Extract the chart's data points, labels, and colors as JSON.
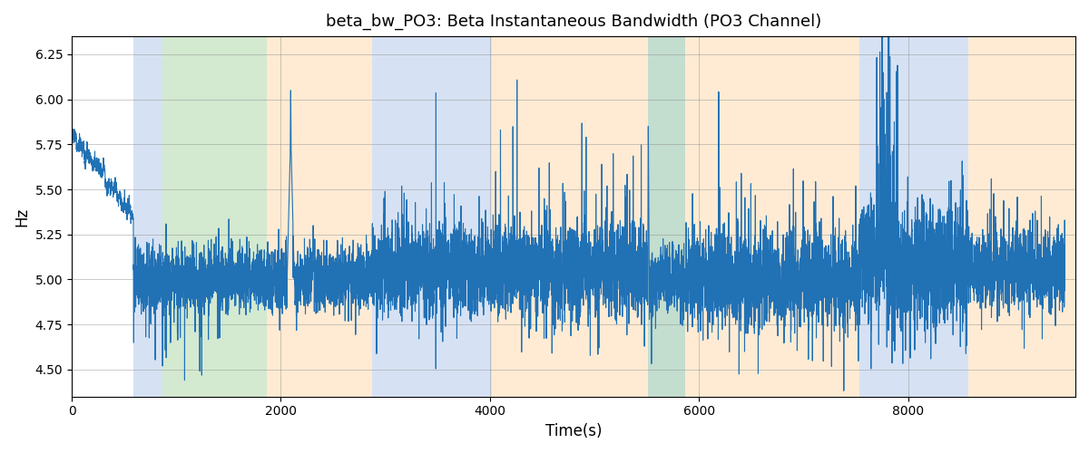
{
  "title": "beta_bw_PO3: Beta Instantaneous Bandwidth (PO3 Channel)",
  "xlabel": "Time(s)",
  "ylabel": "Hz",
  "ylim": [
    4.35,
    6.35
  ],
  "xlim": [
    0,
    9600
  ],
  "yticks": [
    4.5,
    4.75,
    5.0,
    5.25,
    5.5,
    5.75,
    6.0,
    6.25
  ],
  "xticks": [
    0,
    2000,
    4000,
    6000,
    8000
  ],
  "line_color": "#2171b5",
  "line_width": 0.8,
  "bg_color": "#ffffff",
  "bands": [
    {
      "xmin": 590,
      "xmax": 870,
      "color": "#aec6e8",
      "alpha": 0.5
    },
    {
      "xmin": 870,
      "xmax": 1870,
      "color": "#a8d5a2",
      "alpha": 0.5
    },
    {
      "xmin": 1870,
      "xmax": 2870,
      "color": "#ffd9a8",
      "alpha": 0.5
    },
    {
      "xmin": 2870,
      "xmax": 4020,
      "color": "#aec6e8",
      "alpha": 0.5
    },
    {
      "xmin": 4020,
      "xmax": 5510,
      "color": "#ffd9a8",
      "alpha": 0.5
    },
    {
      "xmin": 5510,
      "xmax": 5870,
      "color": "#aec6e8",
      "alpha": 0.45
    },
    {
      "xmin": 5510,
      "xmax": 5870,
      "color": "#a8d5a2",
      "alpha": 0.45
    },
    {
      "xmin": 5870,
      "xmax": 7530,
      "color": "#ffd9a8",
      "alpha": 0.5
    },
    {
      "xmin": 7530,
      "xmax": 8580,
      "color": "#aec6e8",
      "alpha": 0.5
    },
    {
      "xmin": 8580,
      "xmax": 9600,
      "color": "#ffd9a8",
      "alpha": 0.5
    }
  ],
  "seed": 42,
  "n_points": 9500
}
